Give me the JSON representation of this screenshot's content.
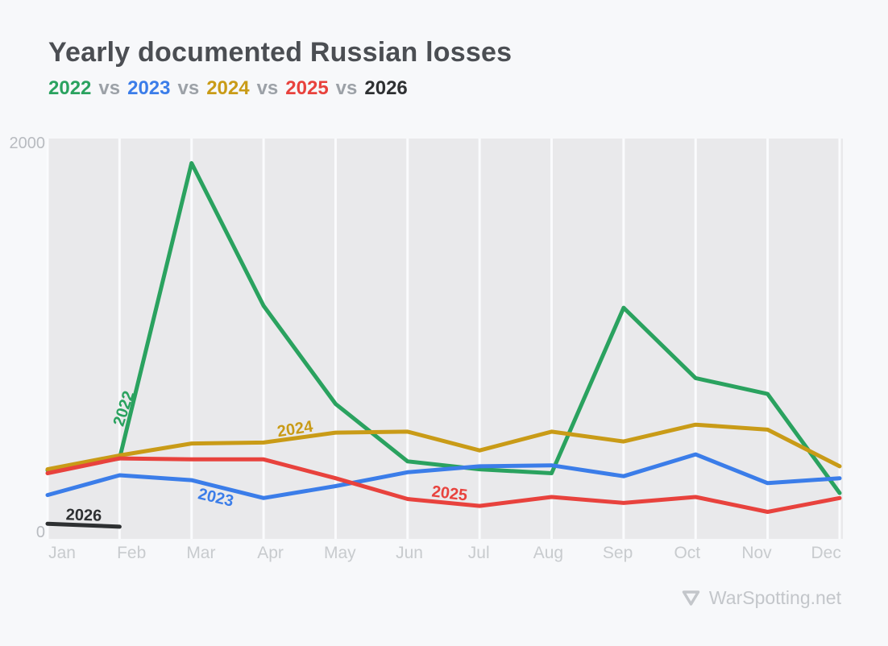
{
  "header": {
    "title": "Yearly documented Russian losses",
    "subtitle_separator": "vs"
  },
  "footer": {
    "icon": "triangle-down",
    "brand": "WarSpotting.net"
  },
  "chart_data": {
    "type": "line",
    "title": "Yearly documented Russian losses",
    "categories": [
      "Jan",
      "Feb",
      "Mar",
      "Apr",
      "May",
      "Jun",
      "Jul",
      "Aug",
      "Sep",
      "Oct",
      "Nov",
      "Dec"
    ],
    "xlabel": "",
    "ylabel": "",
    "ylim": [
      0,
      2000
    ],
    "y_ticks": [
      2000,
      0
    ],
    "grid": "vertical-only",
    "legend_position": "inline-line-labels",
    "plot_background": "#e9e9eb",
    "gridline_color": "#fafbfd",
    "series": [
      {
        "name": "2022",
        "color": "#2aa25f",
        "values": [
          330,
          390,
          1880,
          1160,
          665,
          375,
          335,
          315,
          1150,
          795,
          715,
          215
        ]
      },
      {
        "name": "2023",
        "color": "#3b7de9",
        "values": [
          205,
          305,
          280,
          190,
          250,
          320,
          350,
          355,
          300,
          410,
          265,
          290
        ]
      },
      {
        "name": "2024",
        "color": "#c99b17",
        "values": [
          335,
          405,
          465,
          470,
          520,
          525,
          430,
          525,
          475,
          560,
          535,
          350
        ]
      },
      {
        "name": "2025",
        "color": "#e8423d",
        "values": [
          315,
          390,
          385,
          385,
          290,
          185,
          150,
          195,
          165,
          195,
          120,
          190
        ]
      },
      {
        "name": "2026",
        "color": "#2e3032",
        "values": [
          60,
          45,
          null,
          null,
          null,
          null,
          null,
          null,
          null,
          null,
          null,
          null
        ]
      }
    ]
  }
}
